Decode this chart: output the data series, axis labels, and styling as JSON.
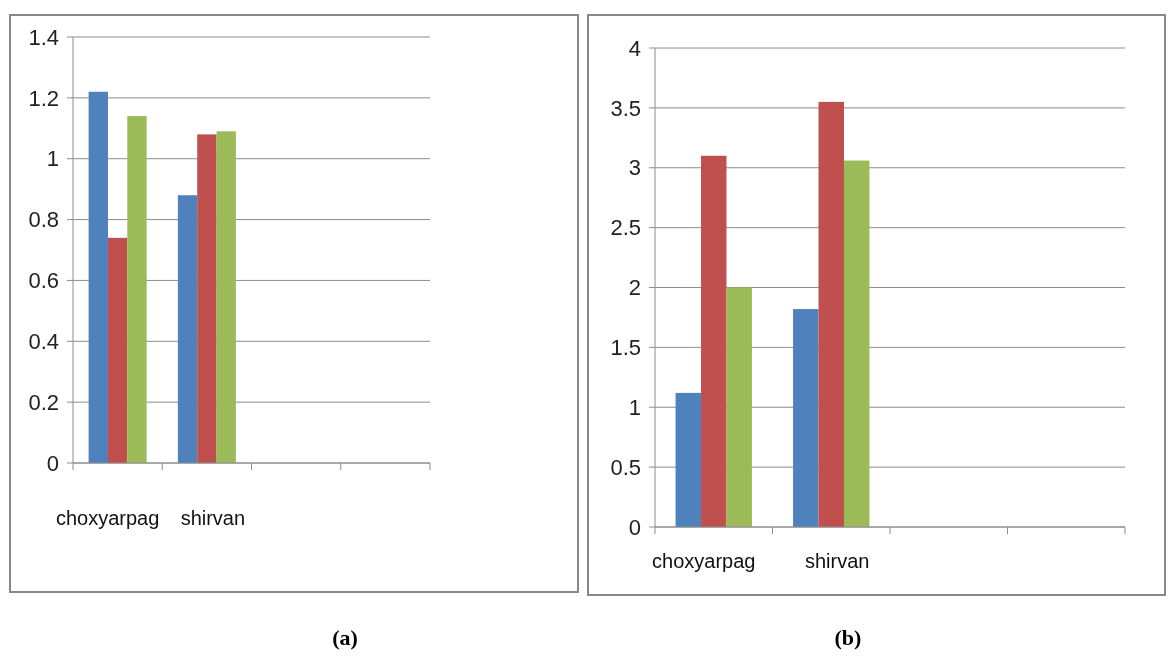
{
  "chart_data": [
    {
      "type": "bar",
      "categories": [
        "choxyarpag",
        "shirvan",
        null,
        null
      ],
      "series": [
        {
          "color": "#4f81bd",
          "values": [
            1.22,
            0.88,
            null,
            null
          ]
        },
        {
          "color": "#c0504d",
          "values": [
            0.74,
            1.08,
            null,
            null
          ]
        },
        {
          "color": "#9bbb59",
          "values": [
            1.14,
            1.09,
            null,
            null
          ]
        }
      ],
      "ylim": [
        0,
        1.4
      ],
      "yticks": [
        0,
        0.2,
        0.4,
        0.6,
        0.8,
        1,
        1.2,
        1.4
      ],
      "grid": "y",
      "annotations": [
        "(a)"
      ]
    },
    {
      "type": "bar",
      "categories": [
        "choxyarpag",
        "shirvan",
        null,
        null
      ],
      "series": [
        {
          "color": "#4f81bd",
          "values": [
            1.12,
            1.82,
            null,
            null
          ]
        },
        {
          "color": "#c0504d",
          "values": [
            3.1,
            3.55,
            null,
            null
          ]
        },
        {
          "color": "#9bbb59",
          "values": [
            2.0,
            3.06,
            null,
            null
          ]
        }
      ],
      "ylim": [
        0,
        4
      ],
      "yticks": [
        0,
        0.5,
        1,
        1.5,
        2,
        2.5,
        3,
        3.5,
        4
      ],
      "grid": "y",
      "annotations": [
        "(b)"
      ]
    }
  ]
}
